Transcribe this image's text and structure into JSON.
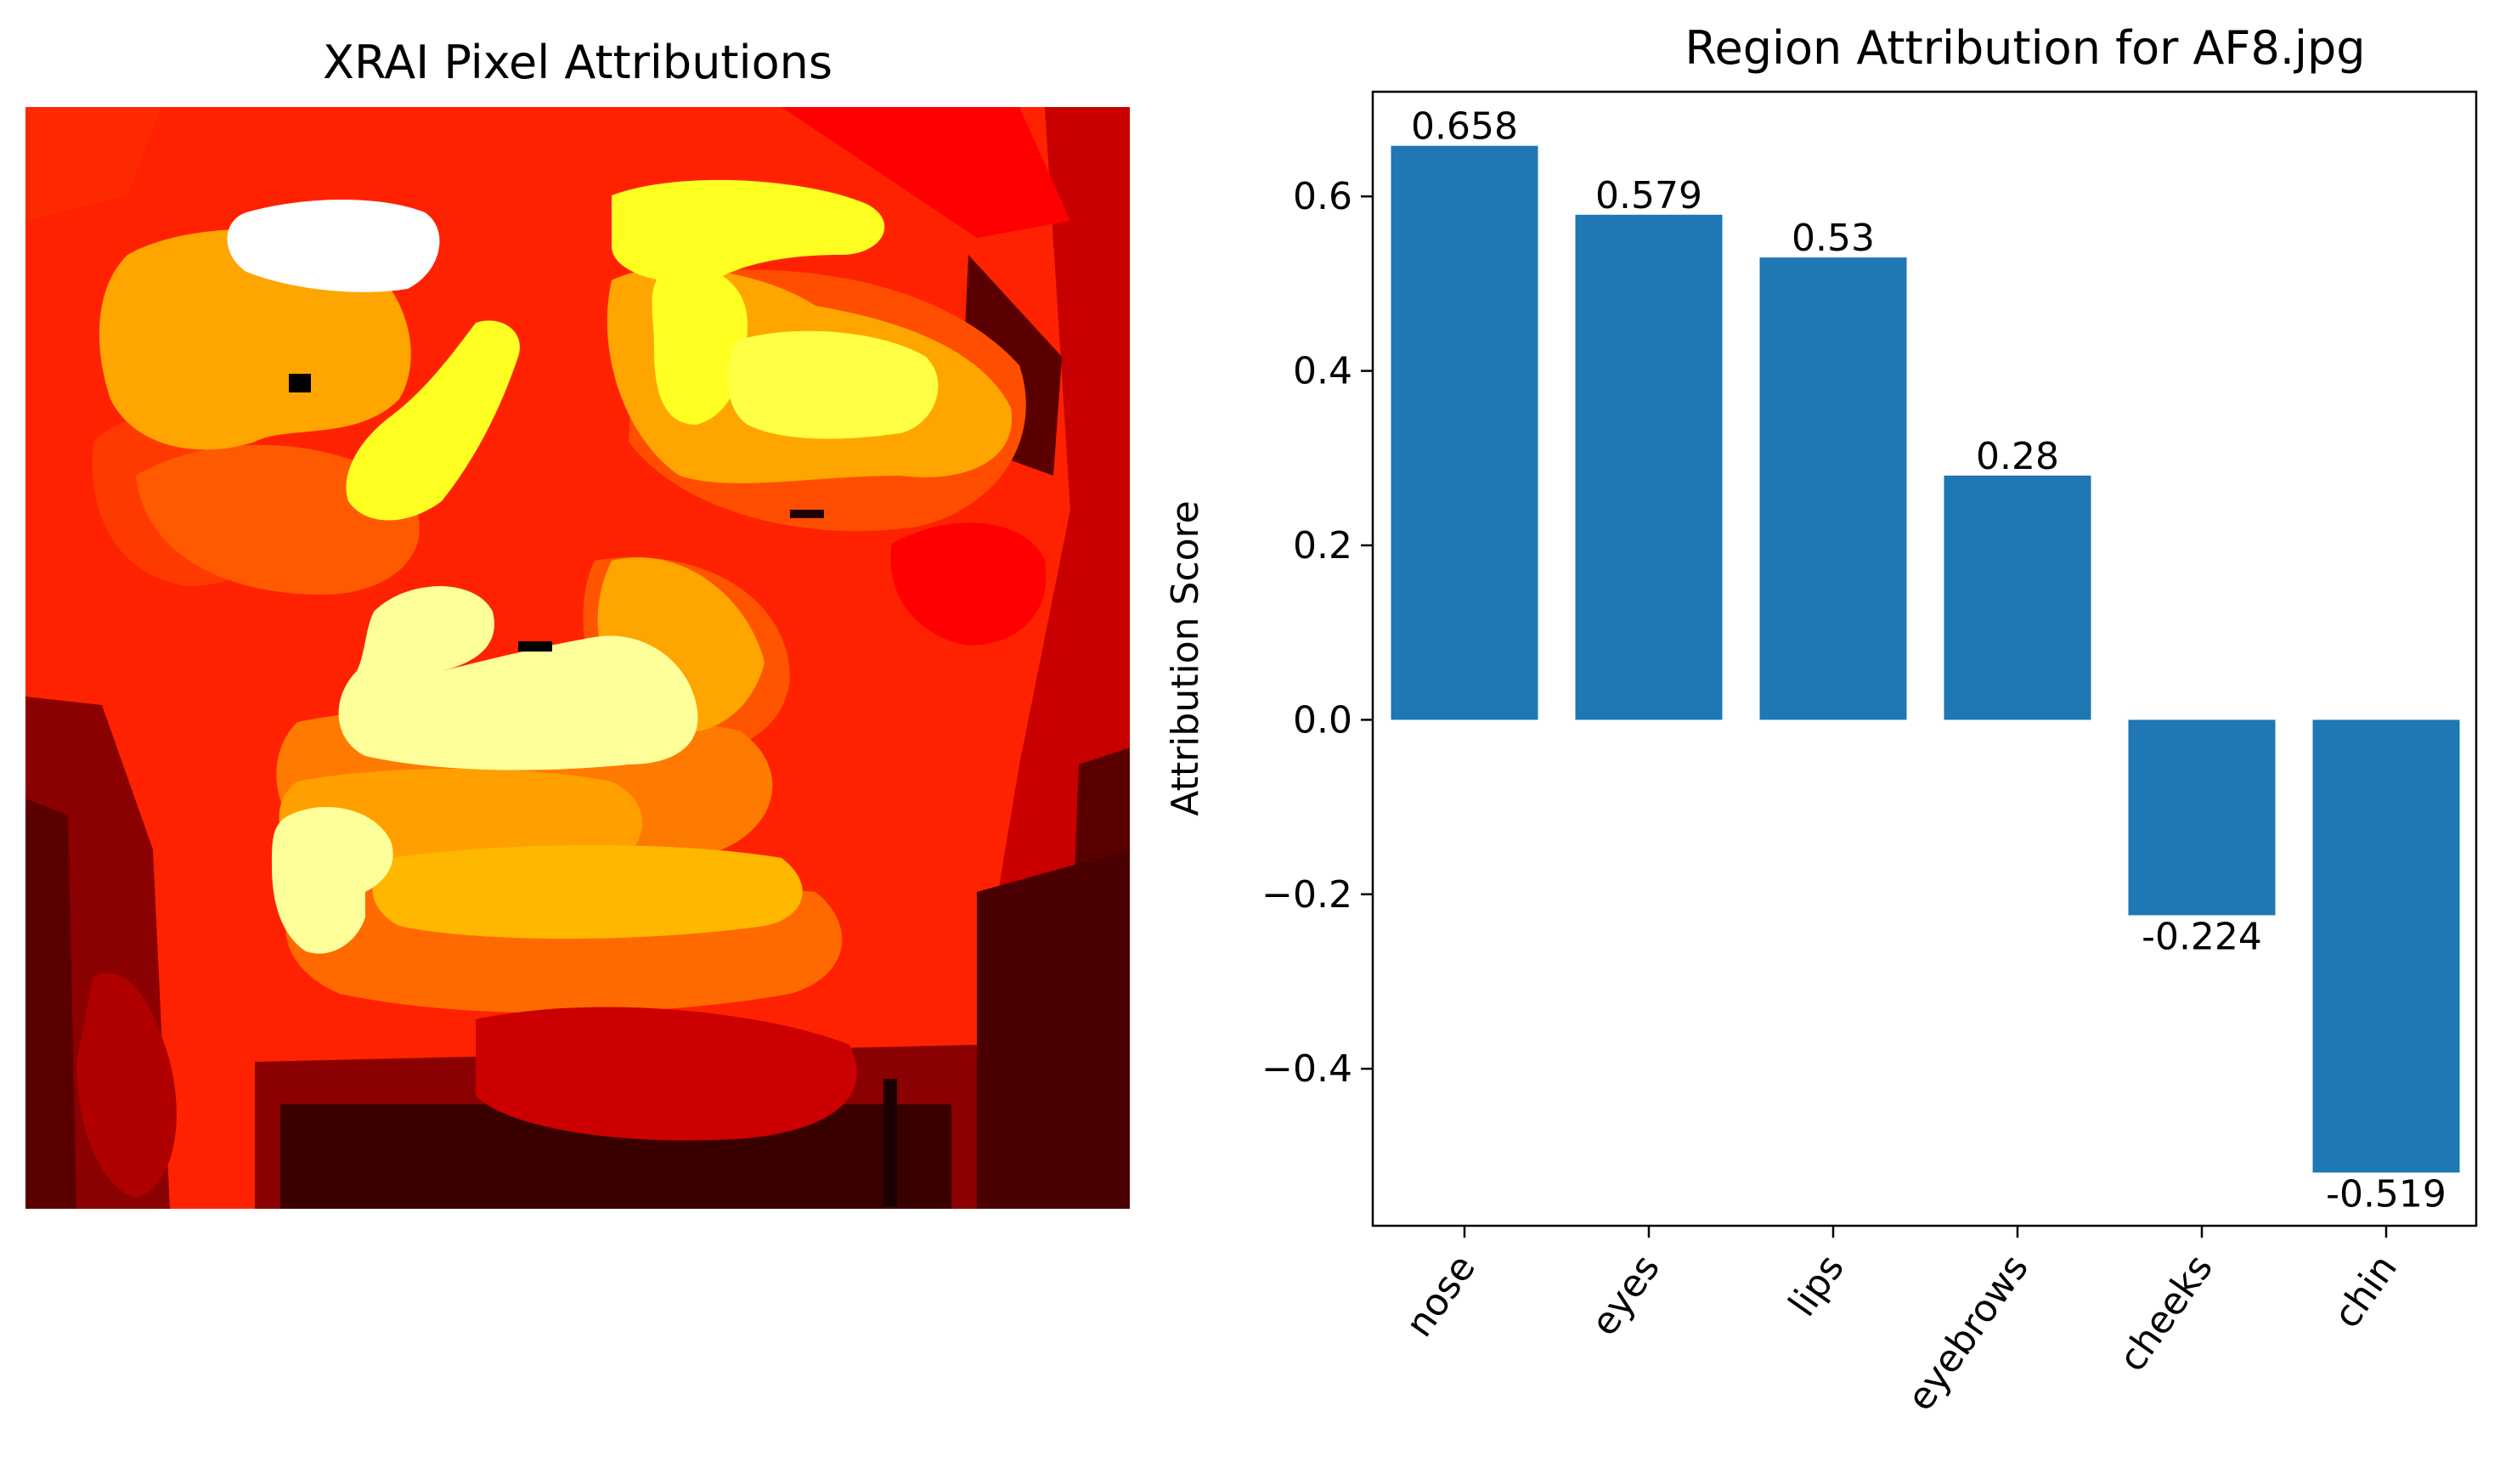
{
  "heatmap_panel": {
    "title": "XRAI Pixel Attributions",
    "colormap": "hot",
    "description_colors": [
      "#ffffff",
      "#ffff66",
      "#ffd700",
      "#ffa500",
      "#ff6a00",
      "#ff2400",
      "#ff0000",
      "#cc0000",
      "#8b0000",
      "#3a0000",
      "#000000"
    ]
  },
  "chart_data": {
    "type": "bar",
    "title": "Region Attribution for AF8.jpg",
    "xlabel": "",
    "ylabel": "Attribution Score",
    "categories": [
      "nose",
      "eyes",
      "lips",
      "eyebrows",
      "cheeks",
      "chin"
    ],
    "values": [
      0.658,
      0.579,
      0.53,
      0.28,
      -0.224,
      -0.519
    ],
    "data_labels": [
      "0.658",
      "0.579",
      "0.53",
      "0.28",
      "-0.224",
      "-0.519"
    ],
    "ylim": [
      -0.58,
      0.72
    ],
    "yticks": [
      -0.4,
      -0.2,
      0.0,
      0.2,
      0.4,
      0.6
    ],
    "ytick_labels": [
      "−0.4",
      "−0.2",
      "0.0",
      "0.2",
      "0.4",
      "0.6"
    ],
    "bar_color": "#1f77b4",
    "grid": false,
    "legend": "none"
  }
}
